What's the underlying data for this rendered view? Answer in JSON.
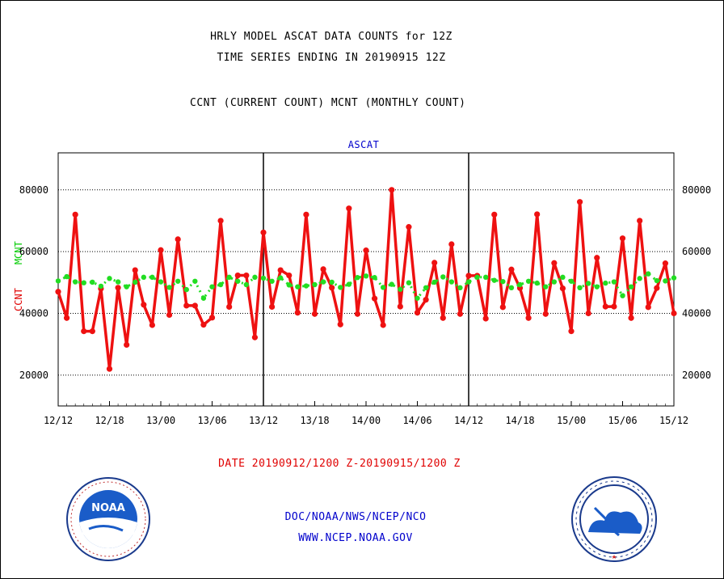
{
  "header": {
    "title_line1": "HRLY MODEL ASCAT DATA COUNTS for 12Z",
    "title_line2": "TIME SERIES ENDING IN 20190915 12Z",
    "title_line3": "CCNT (CURRENT COUNT) MCNT (MONTHLY COUNT)"
  },
  "footer": {
    "line1": "DOC/NOAA/NWS/NCEP/NCO",
    "line2": "WWW.NCEP.NOAA.GOV"
  },
  "logos": {
    "left_icon": "noaa-logo",
    "right_icon": "national-weather-service-logo",
    "left_text": "NOAA"
  },
  "chart_data": {
    "type": "line",
    "title": "ASCAT",
    "xlabel": "DATE 20190912/1200 Z-20190915/1200 Z",
    "ylabel_ccnt": "CCNT",
    "ylabel_mcnt": "MCNT",
    "ylim": [
      10000,
      92000
    ],
    "yticks": [
      20000,
      40000,
      60000,
      80000
    ],
    "ytick_labels": [
      "20000",
      "40000",
      "60000",
      "80000"
    ],
    "grid": true,
    "xlim": [
      0,
      72
    ],
    "xticks": [
      0,
      6,
      12,
      18,
      24,
      30,
      36,
      42,
      48,
      54,
      60,
      66,
      72
    ],
    "xtick_labels": [
      "12/12",
      "12/18",
      "13/00",
      "13/06",
      "13/12",
      "13/18",
      "14/00",
      "14/06",
      "14/12",
      "14/18",
      "15/00",
      "15/06",
      "15/12"
    ],
    "day_dividers": [
      24,
      48
    ],
    "colors": {
      "ccnt": "#ee1111",
      "mcnt": "#22dd22",
      "title": "#0000cc",
      "grid": "#000000"
    },
    "series": [
      {
        "name": "CCNT",
        "values": [
          47000,
          38500,
          72000,
          34200,
          34200,
          48000,
          22000,
          48300,
          29800,
          54000,
          42800,
          36200,
          60500,
          39500,
          64000,
          42500,
          42500,
          36300,
          38600,
          70000,
          42100,
          52300,
          52300,
          32200,
          66200,
          42100,
          54000,
          52300,
          40200,
          72000,
          39800,
          54300,
          48300,
          36400,
          74000,
          39800,
          60400,
          44800,
          36200,
          80000,
          42200,
          68000,
          40200,
          44400,
          56400,
          38500,
          62400,
          39800,
          52200,
          52200,
          38300,
          72000,
          42000,
          54200,
          48200,
          38500,
          72100,
          39800,
          56300,
          48100,
          34200,
          76100,
          40000,
          58000,
          42200,
          42200,
          64300,
          38500,
          70000,
          42000,
          48200,
          56200,
          40000
        ]
      },
      {
        "name": "MCNT",
        "values": [
          50500,
          51900,
          50200,
          49900,
          50100,
          48800,
          51300,
          50200,
          48600,
          50100,
          51700,
          51700,
          50200,
          48400,
          50400,
          47700,
          50400,
          44900,
          48600,
          49300,
          51700,
          50400,
          49300,
          51700,
          51400,
          50400,
          51500,
          49200,
          48600,
          48900,
          49300,
          50200,
          50100,
          48400,
          49400,
          51600,
          52100,
          51600,
          48400,
          49400,
          47800,
          49900,
          44900,
          48300,
          50100,
          51800,
          50200,
          48300,
          50200,
          51700,
          51700,
          50700,
          50300,
          48300,
          49300,
          50400,
          49800,
          48600,
          50200,
          51700,
          50400,
          48300,
          49700,
          48600,
          49800,
          50200,
          45700,
          48600,
          51300,
          52800,
          50600,
          50500,
          51500
        ]
      }
    ]
  }
}
